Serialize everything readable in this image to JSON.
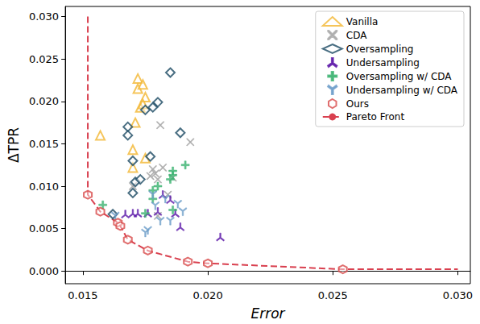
{
  "chart_data": {
    "type": "scatter",
    "x_label": "Error",
    "y_label": "ΔTPR",
    "xlim": [
      0.0143,
      0.0305
    ],
    "ylim": [
      -0.0015,
      0.0312
    ],
    "xticks": [
      0.015,
      {
        "value": 0.02,
        "label": "0.020"
      },
      0.025,
      {
        "value": 0.03,
        "label": "0.030"
      }
    ],
    "yticks": [
      {
        "value": 0,
        "label": "0.000"
      },
      0.005,
      {
        "value": 0.01,
        "label": "0.010"
      },
      0.015,
      {
        "value": 0.02,
        "label": "0.020"
      },
      0.025,
      {
        "value": 0.03,
        "label": "0.030"
      }
    ],
    "grid": false,
    "legend": "upper right",
    "series": [
      {
        "name": "Vanilla",
        "color": "#f2b632",
        "marker": "triangle",
        "x": [
          0.0157,
          0.017,
          0.017,
          0.0171,
          0.0172,
          0.0172,
          0.0173,
          0.0174,
          0.0175,
          0.0175,
          0.0174
        ],
        "values": [
          0.016,
          0.0122,
          0.0143,
          0.0175,
          0.0227,
          0.0215,
          0.0193,
          0.022,
          0.0205,
          0.0133,
          0.0197
        ]
      },
      {
        "name": "CDA",
        "color": "#a9a9a9",
        "marker": "x",
        "x": [
          0.017,
          0.0177,
          0.0178,
          0.0179,
          0.018,
          0.0181,
          0.0182,
          0.018,
          0.0186,
          0.0193,
          0.0184
        ],
        "values": [
          0.01,
          0.0112,
          0.012,
          0.0115,
          0.0108,
          0.0172,
          0.0122,
          0.0065,
          0.011,
          0.0152,
          0.009
        ]
      },
      {
        "name": "Oversampling",
        "color": "#1b4a63",
        "marker": "diamond",
        "x": [
          0.0162,
          0.0168,
          0.0168,
          0.017,
          0.017,
          0.0171,
          0.0173,
          0.0175,
          0.0178,
          0.018,
          0.0185,
          0.0189,
          0.0177
        ],
        "values": [
          0.0067,
          0.017,
          0.016,
          0.0092,
          0.013,
          0.0105,
          0.0108,
          0.019,
          0.0193,
          0.0199,
          0.0234,
          0.0163,
          0.0135
        ]
      },
      {
        "name": "Undersampling",
        "color": "#5b17a8",
        "marker": "tri",
        "x": [
          0.0167,
          0.017,
          0.0172,
          0.0176,
          0.018,
          0.0182,
          0.0185,
          0.0187,
          0.0189,
          0.0205
        ],
        "values": [
          0.0067,
          0.0068,
          0.0068,
          0.0068,
          0.007,
          0.009,
          0.0084,
          0.0068,
          0.0052,
          0.004
        ]
      },
      {
        "name": "Oversampling w/ CDA",
        "color": "#3cb371",
        "marker": "plus",
        "x": [
          0.0158,
          0.0175,
          0.0178,
          0.018,
          0.0185,
          0.0186,
          0.0186,
          0.0191,
          0.0186,
          0.0178
        ],
        "values": [
          0.0078,
          0.0068,
          0.0095,
          0.01,
          0.0108,
          0.0118,
          0.0113,
          0.0125,
          0.0072,
          0.0085
        ]
      },
      {
        "name": "Undersampling w/ CDA",
        "color": "#6d9ec9",
        "marker": "tri_up",
        "x": [
          0.0163,
          0.0175,
          0.0176,
          0.0178,
          0.0179,
          0.0181,
          0.0185,
          0.0188,
          0.019,
          0.0183
        ],
        "values": [
          0.0065,
          0.0045,
          0.0048,
          0.009,
          0.0077,
          0.0059,
          0.0059,
          0.0079,
          0.007,
          0.0085
        ]
      },
      {
        "name": "Ours",
        "color": "#d84a4a",
        "marker": "hexagon",
        "x": [
          0.0152,
          0.0157,
          0.0164,
          0.0165,
          0.0168,
          0.0176,
          0.0192,
          0.02,
          0.0254
        ],
        "values": [
          0.009,
          0.007,
          0.0057,
          0.0053,
          0.0037,
          0.0024,
          0.0011,
          0.0009,
          0.0002
        ]
      },
      {
        "name": "Pareto Front",
        "color": "#d9404f",
        "type": "line",
        "line_style": "dashed",
        "x": [
          0.0152,
          0.0152,
          0.0157,
          0.0164,
          0.0165,
          0.0168,
          0.0176,
          0.0192,
          0.02,
          0.0254,
          0.03
        ],
        "values": [
          0.03,
          0.009,
          0.007,
          0.0057,
          0.0053,
          0.0037,
          0.0024,
          0.0011,
          0.0009,
          0.0002,
          0.0002
        ]
      }
    ]
  }
}
